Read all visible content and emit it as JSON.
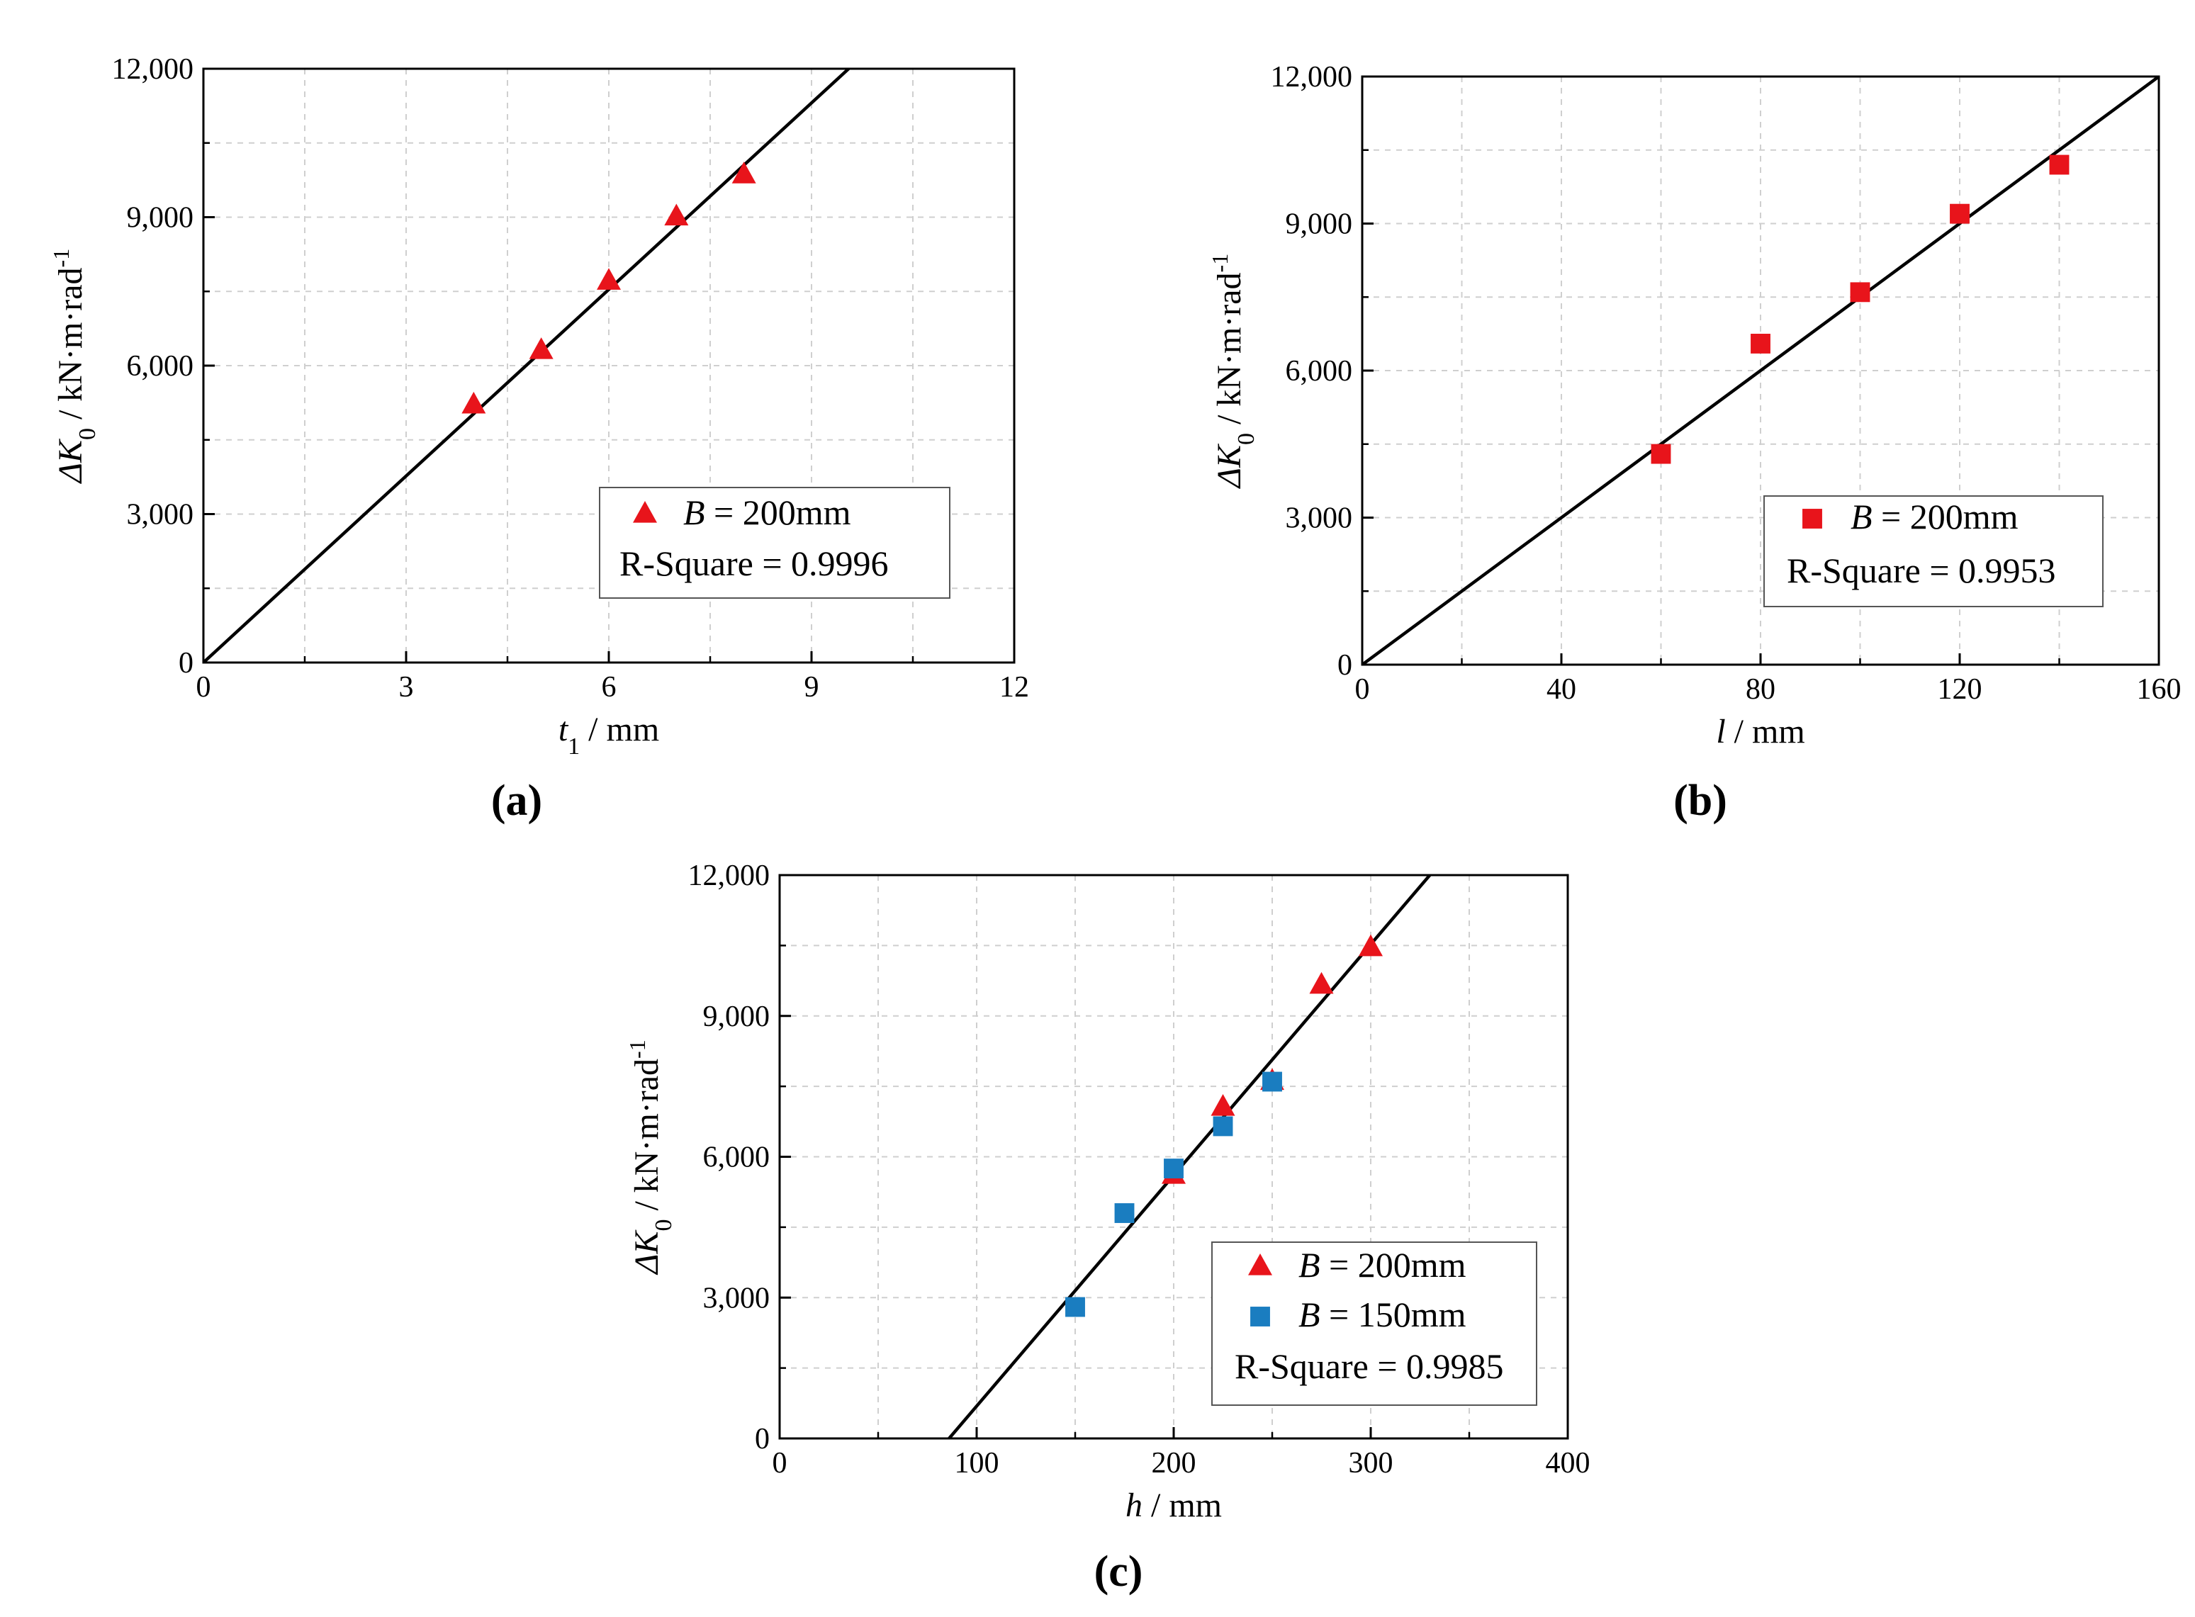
{
  "chart_data": [
    {
      "type": "scatter",
      "panel_label": "a",
      "xlabel_var": "t",
      "xlabel_sub": "1",
      "xlabel_unit": " / mm",
      "ylabel_var": "ΔK",
      "ylabel_sub": "0",
      "ylabel_unit": " / kN·m·rad",
      "ylabel_sup": "-1",
      "xlim": [
        0,
        12
      ],
      "ylim": [
        0,
        12000
      ],
      "xticks": [
        0,
        3,
        6,
        9,
        12
      ],
      "yticks": [
        0,
        3000,
        6000,
        9000,
        12000
      ],
      "xtick_labels": [
        "0",
        "3",
        "6",
        "9",
        "12"
      ],
      "ytick_labels": [
        "0",
        "3,000",
        "6,000",
        "9,000",
        "12,000"
      ],
      "series": [
        {
          "name_var": "B",
          "name_text": " = 200mm",
          "marker": "triangle",
          "color": "#e8141b",
          "x": [
            4,
            5,
            6,
            7,
            8
          ],
          "y": [
            5200,
            6300,
            7700,
            9000,
            9850
          ]
        }
      ],
      "fit": {
        "x0": 0,
        "y0": 0,
        "x1": 9.55,
        "y1": 12000
      },
      "r_square_text": "R-Square = 0.9996"
    },
    {
      "type": "scatter",
      "panel_label": "b",
      "xlabel_var": "l",
      "xlabel_sub": "",
      "xlabel_unit": " / mm",
      "ylabel_var": "ΔK",
      "ylabel_sub": "0",
      "ylabel_unit": " / kN·m·rad",
      "ylabel_sup": "-1",
      "xlim": [
        0,
        160
      ],
      "ylim": [
        0,
        12000
      ],
      "xticks": [
        0,
        40,
        80,
        120,
        160
      ],
      "yticks": [
        0,
        3000,
        6000,
        9000,
        12000
      ],
      "xtick_labels": [
        "0",
        "40",
        "80",
        "120",
        "160"
      ],
      "ytick_labels": [
        "0",
        "3,000",
        "6,000",
        "9,000",
        "12,000"
      ],
      "series": [
        {
          "name_var": "B",
          "name_text": " = 200mm",
          "marker": "square",
          "color": "#e8141b",
          "x": [
            60,
            80,
            100,
            120,
            140
          ],
          "y": [
            4300,
            6550,
            7600,
            9200,
            10200
          ]
        }
      ],
      "fit": {
        "x0": 0,
        "y0": 0,
        "x1": 160,
        "y1": 12000
      },
      "r_square_text": "R-Square = 0.9953"
    },
    {
      "type": "scatter",
      "panel_label": "c",
      "xlabel_var": "h",
      "xlabel_sub": "",
      "xlabel_unit": " / mm",
      "ylabel_var": "ΔK",
      "ylabel_sub": "0",
      "ylabel_unit": " / kN·m·rad",
      "ylabel_sup": "-1",
      "xlim": [
        0,
        400
      ],
      "ylim": [
        0,
        12000
      ],
      "xticks": [
        0,
        100,
        200,
        300,
        400
      ],
      "yticks": [
        0,
        3000,
        6000,
        9000,
        12000
      ],
      "xtick_labels": [
        "0",
        "100",
        "200",
        "300",
        "400"
      ],
      "ytick_labels": [
        "0",
        "3,000",
        "6,000",
        "9,000",
        "12,000"
      ],
      "series": [
        {
          "name_var": "B",
          "name_text": " = 200mm",
          "marker": "triangle",
          "color": "#e8141b",
          "x": [
            200,
            225,
            250,
            275,
            300
          ],
          "y": [
            5600,
            7050,
            7600,
            9650,
            10450
          ]
        },
        {
          "name_var": "B",
          "name_text": " = 150mm",
          "marker": "square",
          "color": "#1a7dc0",
          "x": [
            150,
            175,
            200,
            225,
            250
          ],
          "y": [
            2800,
            4800,
            5750,
            6650,
            7600
          ]
        }
      ],
      "fit": {
        "x0": 86,
        "y0": 0,
        "x1": 330,
        "y1": 12000
      },
      "r_square_text": "R-Square = 0.9985"
    }
  ]
}
